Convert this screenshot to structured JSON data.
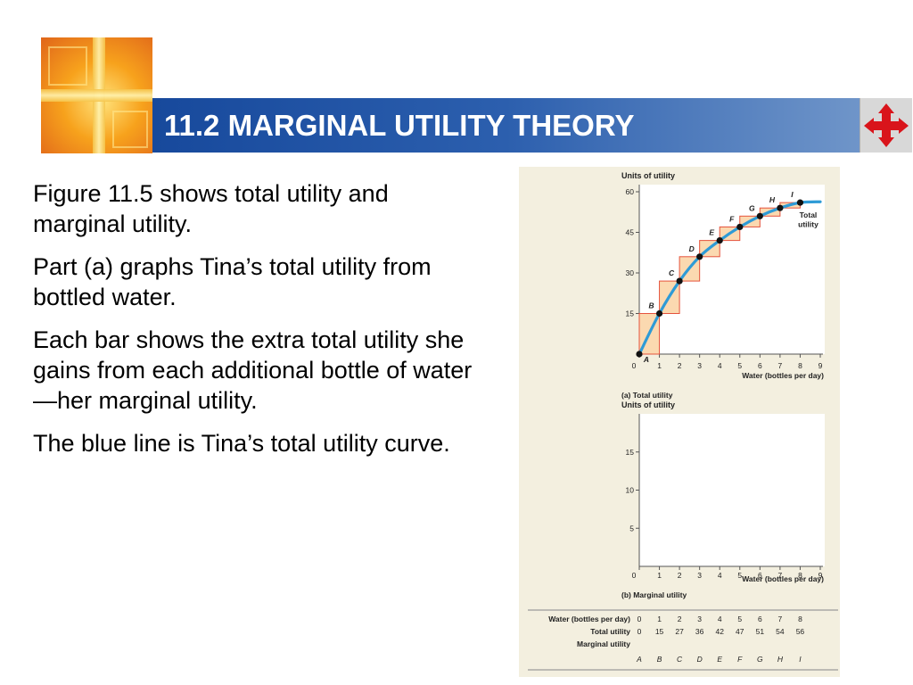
{
  "slide": {
    "title": "11.2 MARGINAL UTILITY THEORY",
    "bullets": [
      "Figure 11.5 shows total utility and marginal utility.",
      "Part (a) graphs Tina’s total utility from bottled water.",
      "Each bar shows the extra total utility she gains from each additional bottle of water—her marginal utility.",
      "The blue line is Tina’s total utility curve."
    ],
    "colors": {
      "title_bar": "#2c5fae",
      "curve": "#2e9bd6",
      "bars": "#fbd9b0",
      "bar_outline": "#e5533d",
      "figure_bg": "#f3efdf"
    }
  },
  "chart_data": [
    {
      "type": "bar",
      "panel_label": "(a)  Total utility",
      "ylabel": "Units of utility",
      "xlabel": "Water (bottles per day)",
      "x": [
        0,
        1,
        2,
        3,
        4,
        5,
        6,
        7,
        8
      ],
      "x_ticks": [
        "0",
        "1",
        "2",
        "3",
        "4",
        "5",
        "6",
        "7",
        "8",
        "9"
      ],
      "y_ticks": [
        "15",
        "30",
        "45",
        "60"
      ],
      "xlim": [
        0,
        9
      ],
      "ylim": [
        0,
        60
      ],
      "values": [
        0,
        15,
        27,
        36,
        42,
        47,
        51,
        54,
        56
      ],
      "point_labels": [
        "A",
        "B",
        "C",
        "D",
        "E",
        "F",
        "G",
        "H",
        "I"
      ],
      "curve_label": [
        "Total",
        "utility"
      ]
    },
    {
      "type": "bar",
      "panel_label": "(b)  Marginal utility",
      "ylabel": "Units of utility",
      "xlabel": "Water (bottles per day)",
      "x_ticks": [
        "0",
        "1",
        "2",
        "3",
        "4",
        "5",
        "6",
        "7",
        "8",
        "9"
      ],
      "y_ticks": [
        "5",
        "10",
        "15"
      ],
      "xlim": [
        0,
        9
      ],
      "ylim": [
        0,
        20
      ],
      "values": []
    },
    {
      "type": "table",
      "rows": [
        {
          "header": "Water (bottles per day)",
          "cells": [
            "0",
            "1",
            "2",
            "3",
            "4",
            "5",
            "6",
            "7",
            "8"
          ]
        },
        {
          "header": "Total utility",
          "cells": [
            "0",
            "15",
            "27",
            "36",
            "42",
            "47",
            "51",
            "54",
            "56"
          ]
        },
        {
          "header": "Marginal utility",
          "cells": []
        }
      ],
      "footer": [
        "A",
        "B",
        "C",
        "D",
        "E",
        "F",
        "G",
        "H",
        "I"
      ]
    }
  ]
}
